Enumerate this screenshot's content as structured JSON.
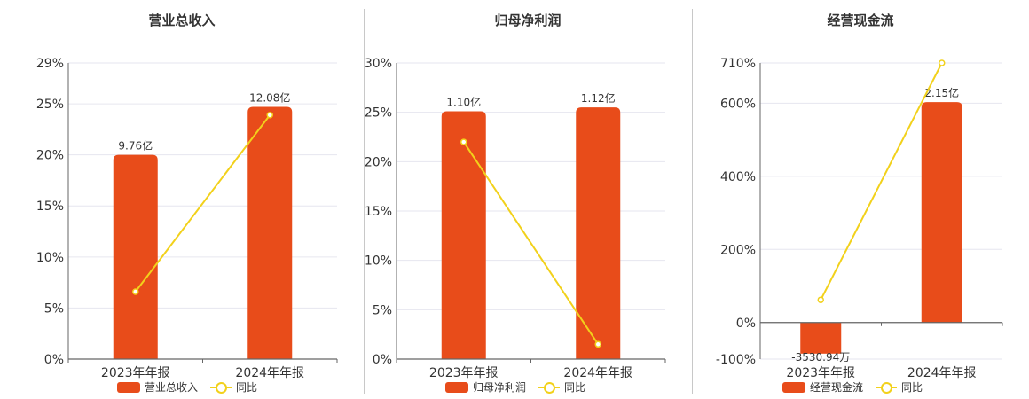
{
  "colors": {
    "bar": "#e84c1a",
    "line": "#f2d11b",
    "grid": "#e6e6ef",
    "axis": "#666666"
  },
  "legend": {
    "line_label": "同比"
  },
  "chart_data": [
    {
      "type": "bar",
      "title": "营业总收入",
      "categories": [
        "2023年年报",
        "2024年年报"
      ],
      "series": [
        {
          "name": "营业总收入",
          "type": "bar",
          "values": [
            20,
            24.7
          ],
          "labels": [
            "9.76亿",
            "12.08亿"
          ]
        },
        {
          "name": "同比",
          "type": "line",
          "values": [
            6.6,
            23.9
          ]
        }
      ],
      "ylim": [
        0,
        29
      ],
      "yticks": [
        0,
        5,
        10,
        15,
        20,
        25,
        29
      ],
      "ytick_labels": [
        "0%",
        "5%",
        "10%",
        "15%",
        "20%",
        "25%",
        "29%"
      ],
      "grid": true,
      "legend_position": "bottom"
    },
    {
      "type": "bar",
      "title": "归母净利润",
      "categories": [
        "2023年年报",
        "2024年年报"
      ],
      "series": [
        {
          "name": "归母净利润",
          "type": "bar",
          "values": [
            25.1,
            25.5
          ],
          "labels": [
            "1.10亿",
            "1.12亿"
          ]
        },
        {
          "name": "同比",
          "type": "line",
          "values": [
            22,
            1.5
          ]
        }
      ],
      "ylim": [
        0,
        30
      ],
      "yticks": [
        0,
        5,
        10,
        15,
        20,
        25,
        30
      ],
      "ytick_labels": [
        "0%",
        "5%",
        "10%",
        "15%",
        "20%",
        "25%",
        "30%"
      ],
      "grid": true,
      "legend_position": "bottom"
    },
    {
      "type": "bar",
      "title": "经营现金流",
      "categories": [
        "2023年年报",
        "2024年年报"
      ],
      "series": [
        {
          "name": "经营现金流",
          "type": "bar",
          "values": [
            -85,
            603
          ],
          "labels": [
            "-3530.94万",
            "2.15亿"
          ]
        },
        {
          "name": "同比",
          "type": "line",
          "values": [
            62,
            710
          ]
        }
      ],
      "ylim": [
        -100,
        710
      ],
      "yticks": [
        -100,
        0,
        200,
        400,
        600,
        710
      ],
      "ytick_labels": [
        "-100%",
        "0%",
        "200%",
        "400%",
        "600%",
        "710%"
      ],
      "grid": true,
      "legend_position": "bottom"
    }
  ]
}
